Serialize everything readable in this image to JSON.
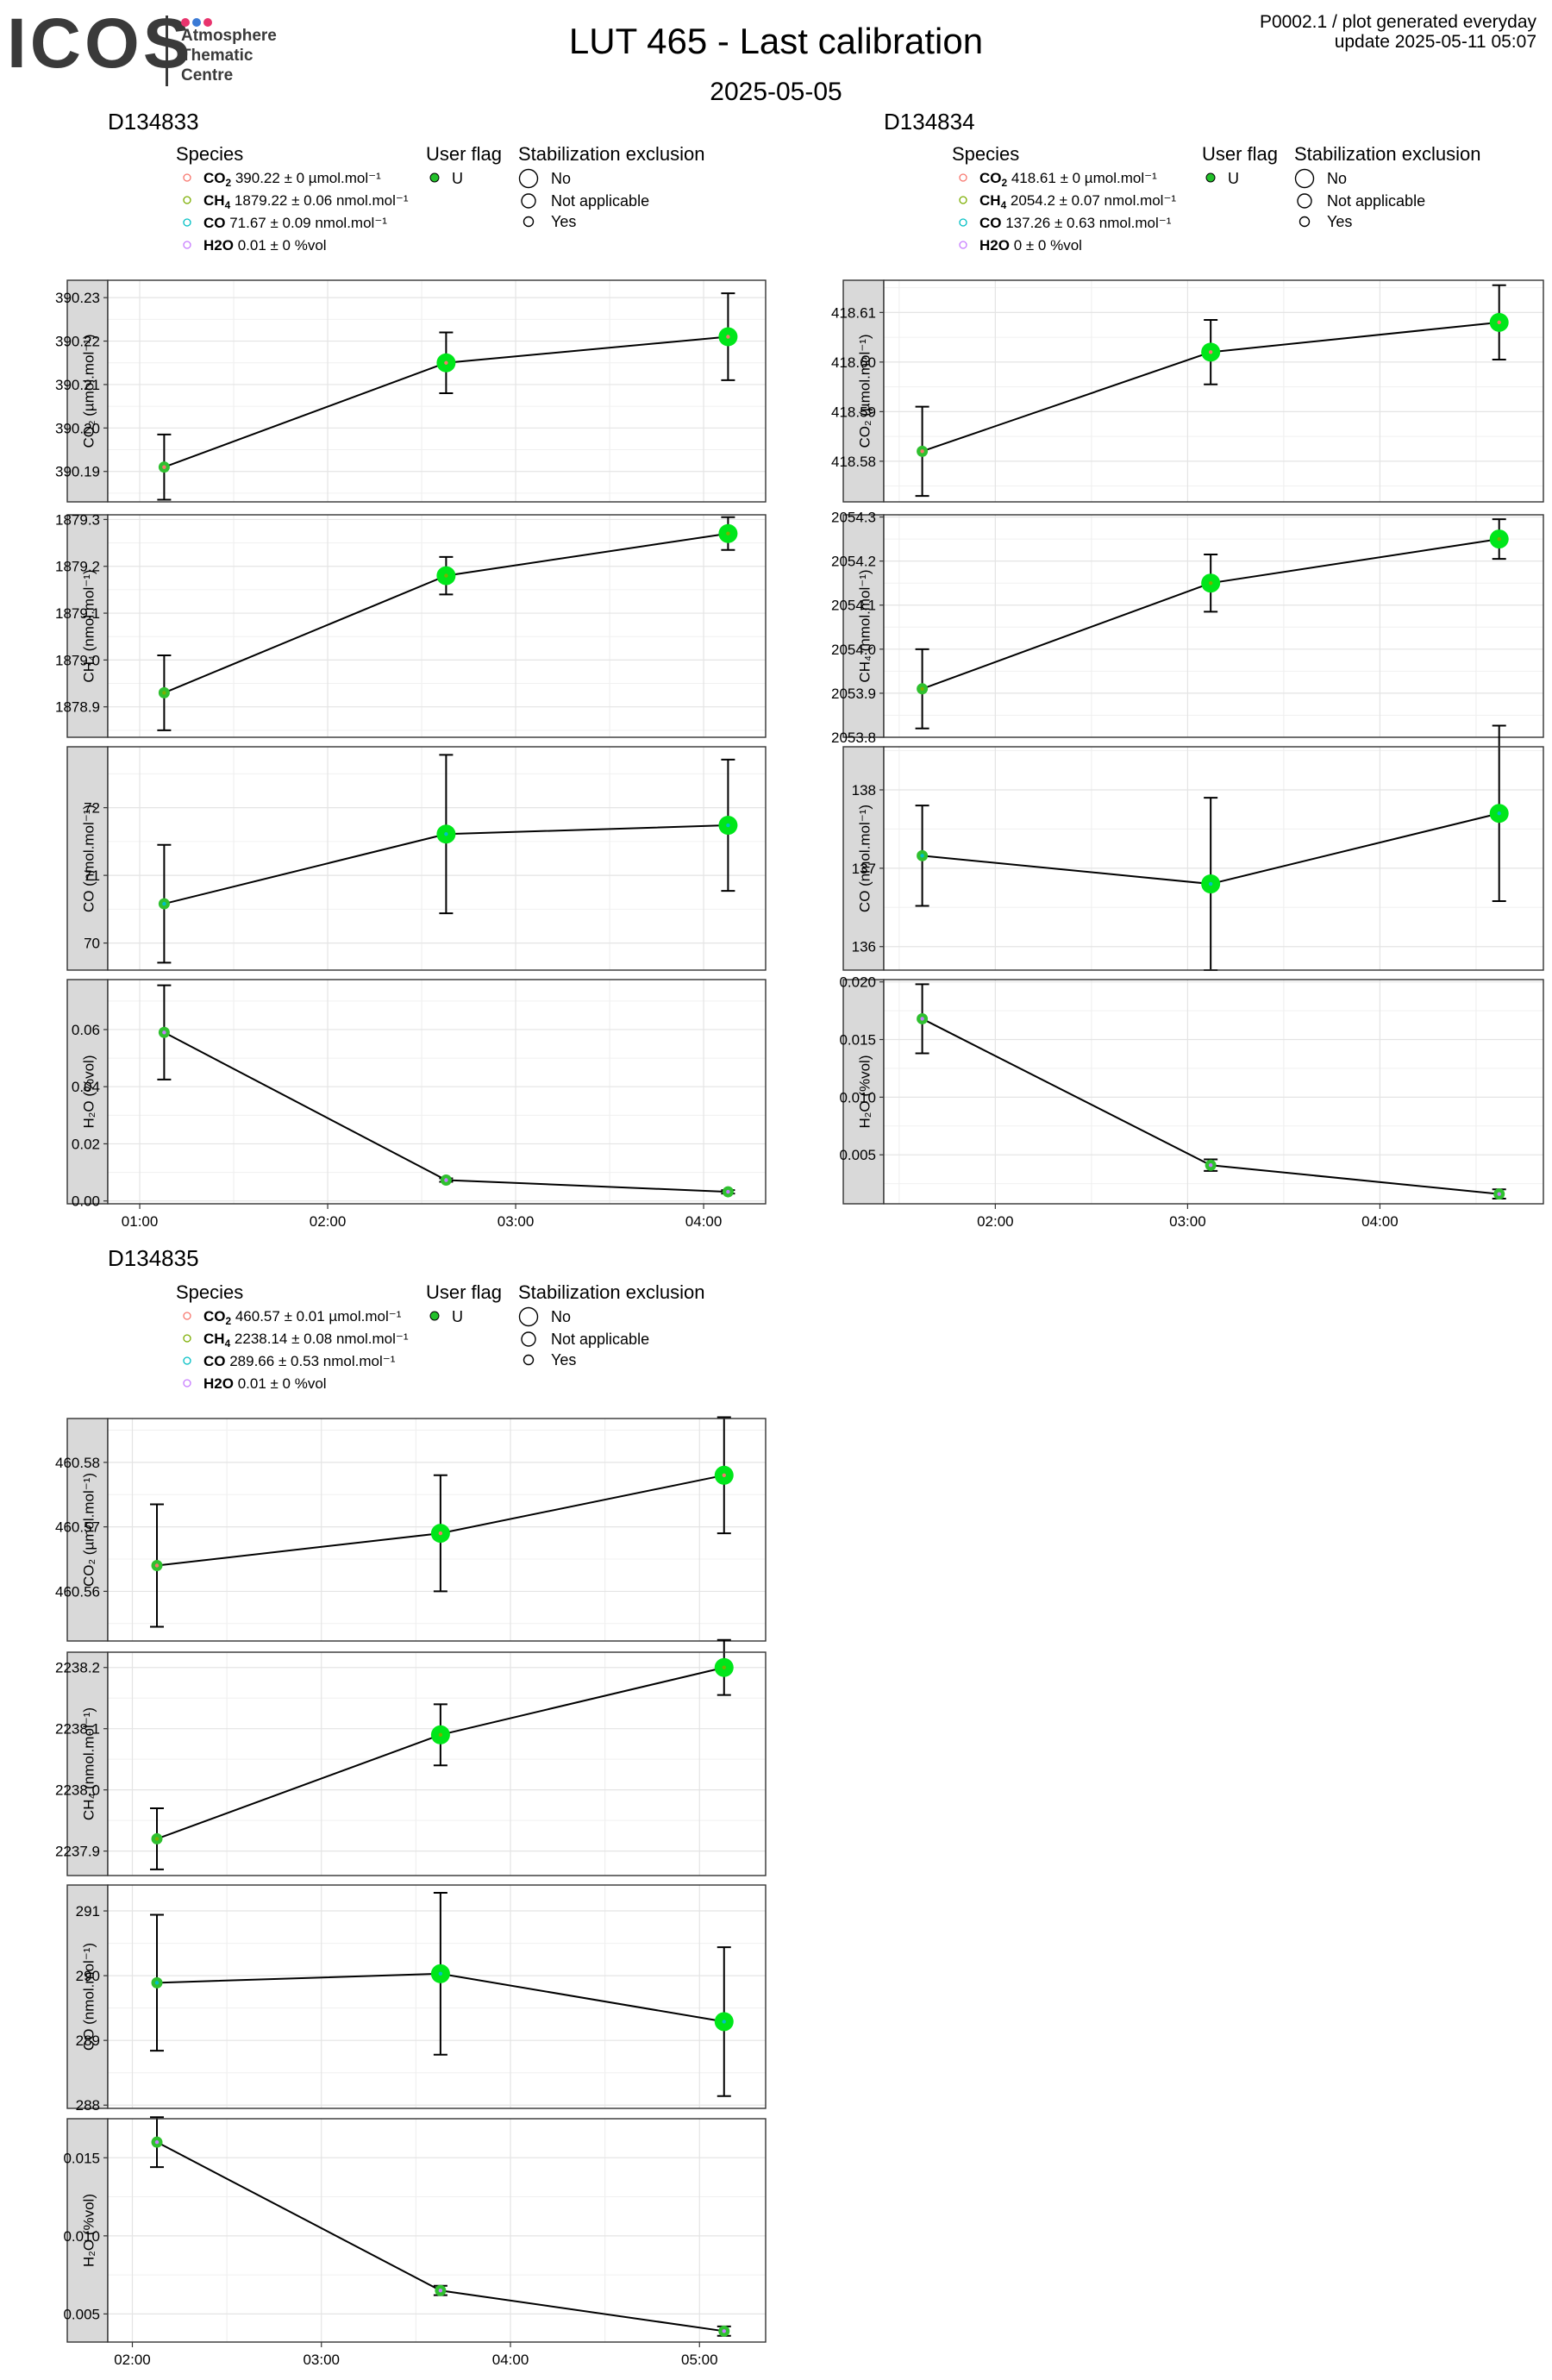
{
  "logo": {
    "wordmark": "ICOS",
    "line1": "Atmosphere",
    "line2": "Thematic",
    "line3": "Centre",
    "dot_colors": [
      "#e8336d",
      "#3b7bd6",
      "#e8336d"
    ],
    "text_color": "#3a3a3a"
  },
  "header": {
    "title": "LUT 465 - Last calibration",
    "date": "2025-05-05",
    "product": "P0002.1 / plot generated everyday",
    "update": "update  2025-05-11 05:07"
  },
  "legend_titles": {
    "species": "Species",
    "user_flag": "User flag",
    "stabilization": "Stabilization exclusion"
  },
  "legend_labels": {
    "user_flag_value": "U",
    "stab_no": "No",
    "stab_na": "Not applicable",
    "stab_yes": "Yes"
  },
  "species_colors": {
    "CO2": "#f8766d",
    "CH4": "#7cae00",
    "CO": "#00bfc4",
    "H2O": "#c77cff"
  },
  "marker_color": "#00e61a",
  "chart_data": [
    {
      "type": "scatter",
      "instrument": "D134833",
      "xlabel": "",
      "x_ticks": [
        "01:00",
        "02:00",
        "03:00",
        "04:00"
      ],
      "xlim": [
        0.83,
        4.33
      ],
      "x_tick_values": [
        1,
        2,
        3,
        4
      ],
      "species": [
        {
          "label": "CO2",
          "summary": "390.22 ± 0 µmol.mol⁻¹"
        },
        {
          "label": "CH4",
          "summary": "1879.22 ± 0.06 nmol.mol⁻¹"
        },
        {
          "label": "CO",
          "summary": "71.67 ± 0.09 nmol.mol⁻¹"
        },
        {
          "label": "H2O",
          "summary": "0.01 ± 0 %vol"
        }
      ],
      "panels": [
        {
          "species": "CO2",
          "ylabel": "CO₂ (µmol.mol⁻¹)",
          "ylim": [
            390.183,
            390.234
          ],
          "y_ticks": [
            "390.19",
            "390.20",
            "390.21",
            "390.22",
            "390.23"
          ],
          "y_tick_values": [
            390.19,
            390.2,
            390.21,
            390.22,
            390.23
          ],
          "points": [
            {
              "x": 1.13,
              "y": 390.191,
              "err": 0.0075,
              "size": "small"
            },
            {
              "x": 2.63,
              "y": 390.215,
              "err": 0.007,
              "size": "large"
            },
            {
              "x": 4.13,
              "y": 390.221,
              "err": 0.01,
              "size": "large"
            }
          ]
        },
        {
          "species": "CH4",
          "ylabel": "CH₄ (nmol.mol⁻¹)",
          "ylim": [
            1878.835,
            1879.31
          ],
          "y_ticks": [
            "1878.9",
            "1879.0",
            "1879.1",
            "1879.2",
            "1879.3"
          ],
          "y_tick_values": [
            1878.9,
            1879.0,
            1879.1,
            1879.2,
            1879.3
          ],
          "points": [
            {
              "x": 1.13,
              "y": 1878.93,
              "err": 0.08,
              "size": "small"
            },
            {
              "x": 2.63,
              "y": 1879.18,
              "err": 0.04,
              "size": "large"
            },
            {
              "x": 4.13,
              "y": 1879.27,
              "err": 0.035,
              "size": "large"
            }
          ]
        },
        {
          "species": "CO",
          "ylabel": "CO (nmol.mol⁻¹)",
          "ylim": [
            69.6,
            72.9
          ],
          "y_ticks": [
            "70",
            "71",
            "72"
          ],
          "y_tick_values": [
            70,
            71,
            72
          ],
          "points": [
            {
              "x": 1.13,
              "y": 70.58,
              "err": 0.87,
              "size": "small"
            },
            {
              "x": 2.63,
              "y": 71.61,
              "err": 1.17,
              "size": "large"
            },
            {
              "x": 4.13,
              "y": 71.74,
              "err": 0.97,
              "size": "large"
            }
          ]
        },
        {
          "species": "H2O",
          "ylabel": "H₂O (%vol)",
          "ylim": [
            -0.001,
            0.0775
          ],
          "y_ticks": [
            "0.00",
            "0.02",
            "0.04",
            "0.06"
          ],
          "y_tick_values": [
            0,
            0.02,
            0.04,
            0.06
          ],
          "points": [
            {
              "x": 1.13,
              "y": 0.059,
              "err": 0.0165,
              "size": "small"
            },
            {
              "x": 2.63,
              "y": 0.0073,
              "err": 0.0006,
              "size": "small"
            },
            {
              "x": 4.13,
              "y": 0.0032,
              "err": 0.0006,
              "size": "small"
            }
          ]
        }
      ]
    },
    {
      "type": "scatter",
      "instrument": "D134834",
      "xlabel": "",
      "x_ticks": [
        "02:00",
        "03:00",
        "04:00"
      ],
      "xlim": [
        1.42,
        4.85
      ],
      "x_tick_values": [
        2,
        3,
        4
      ],
      "species": [
        {
          "label": "CO2",
          "summary": "418.61 ± 0 µmol.mol⁻¹"
        },
        {
          "label": "CH4",
          "summary": "2054.2 ± 0.07 nmol.mol⁻¹"
        },
        {
          "label": "CO",
          "summary": "137.26 ± 0.63 nmol.mol⁻¹"
        },
        {
          "label": "H2O",
          "summary": "0 ± 0 %vol"
        }
      ],
      "panels": [
        {
          "species": "CO2",
          "ylabel": "CO₂ (µmol.mol⁻¹)",
          "ylim": [
            418.5718,
            418.6165
          ],
          "y_ticks": [
            "418.58",
            "418.59",
            "418.60",
            "418.61"
          ],
          "y_tick_values": [
            418.58,
            418.59,
            418.6,
            418.61
          ],
          "points": [
            {
              "x": 1.62,
              "y": 418.582,
              "err": 0.009,
              "size": "small"
            },
            {
              "x": 3.12,
              "y": 418.602,
              "err": 0.0065,
              "size": "large"
            },
            {
              "x": 4.62,
              "y": 418.608,
              "err": 0.0075,
              "size": "large"
            }
          ]
        },
        {
          "species": "CH4",
          "ylabel": "CH₄ (nmol.mol⁻¹)",
          "ylim": [
            2053.8,
            2054.305
          ],
          "y_ticks": [
            "2053.8",
            "2053.9",
            "2054.0",
            "2054.1",
            "2054.2",
            "2054.3"
          ],
          "y_tick_values": [
            2053.8,
            2053.9,
            2054.0,
            2054.1,
            2054.2,
            2054.3
          ],
          "points": [
            {
              "x": 1.62,
              "y": 2053.91,
              "err": 0.09,
              "size": "small"
            },
            {
              "x": 3.12,
              "y": 2054.15,
              "err": 0.065,
              "size": "large"
            },
            {
              "x": 4.62,
              "y": 2054.25,
              "err": 0.045,
              "size": "large"
            }
          ]
        },
        {
          "species": "CO",
          "ylabel": "CO (nmol.mol⁻¹)",
          "ylim": [
            135.7,
            138.55
          ],
          "y_ticks": [
            "136",
            "137",
            "138"
          ],
          "y_tick_values": [
            136,
            137,
            138
          ],
          "points": [
            {
              "x": 1.62,
              "y": 137.16,
              "err": 0.64,
              "size": "small"
            },
            {
              "x": 3.12,
              "y": 136.8,
              "err": 1.1,
              "size": "large"
            },
            {
              "x": 4.62,
              "y": 137.7,
              "err": 1.12,
              "size": "large"
            }
          ]
        },
        {
          "species": "H2O",
          "ylabel": "H₂O (%vol)",
          "ylim": [
            0.00075,
            0.0202
          ],
          "y_ticks": [
            "0.005",
            "0.010",
            "0.015",
            "0.020"
          ],
          "y_tick_values": [
            0.005,
            0.01,
            0.015,
            0.02
          ],
          "points": [
            {
              "x": 1.62,
              "y": 0.0168,
              "err": 0.003,
              "size": "small"
            },
            {
              "x": 3.12,
              "y": 0.0041,
              "err": 0.0005,
              "size": "small"
            },
            {
              "x": 4.62,
              "y": 0.0016,
              "err": 0.0004,
              "size": "small"
            }
          ]
        }
      ]
    },
    {
      "type": "scatter",
      "instrument": "D134835",
      "xlabel": "",
      "x_ticks": [
        "02:00",
        "03:00",
        "04:00",
        "05:00"
      ],
      "xlim": [
        1.87,
        5.35
      ],
      "x_tick_values": [
        2,
        3,
        4,
        5
      ],
      "species": [
        {
          "label": "CO2",
          "summary": "460.57 ± 0.01 µmol.mol⁻¹"
        },
        {
          "label": "CH4",
          "summary": "2238.14 ± 0.08 nmol.mol⁻¹"
        },
        {
          "label": "CO",
          "summary": "289.66 ± 0.53 nmol.mol⁻¹"
        },
        {
          "label": "H2O",
          "summary": "0.01 ± 0 %vol"
        }
      ],
      "panels": [
        {
          "species": "CO2",
          "ylabel": "CO₂ (µmol.mol⁻¹)",
          "ylim": [
            460.5523,
            460.5868
          ],
          "y_ticks": [
            "460.56",
            "460.57",
            "460.58"
          ],
          "y_tick_values": [
            460.56,
            460.57,
            460.58
          ],
          "points": [
            {
              "x": 2.13,
              "y": 460.564,
              "err": 0.0095,
              "size": "small"
            },
            {
              "x": 3.63,
              "y": 460.569,
              "err": 0.009,
              "size": "large"
            },
            {
              "x": 5.13,
              "y": 460.578,
              "err": 0.009,
              "size": "large"
            }
          ]
        },
        {
          "species": "CH4",
          "ylabel": "CH₄ (nmol.mol⁻¹)",
          "ylim": [
            2237.86,
            2238.225
          ],
          "y_ticks": [
            "2237.9",
            "2238.0",
            "2238.1",
            "2238.2"
          ],
          "y_tick_values": [
            2237.9,
            2238.0,
            2238.1,
            2238.2
          ],
          "points": [
            {
              "x": 2.13,
              "y": 2237.92,
              "err": 0.05,
              "size": "small"
            },
            {
              "x": 3.63,
              "y": 2238.09,
              "err": 0.05,
              "size": "large"
            },
            {
              "x": 5.13,
              "y": 2238.2,
              "err": 0.045,
              "size": "large"
            }
          ]
        },
        {
          "species": "CO",
          "ylabel": "CO (nmol.mol⁻¹)",
          "ylim": [
            287.95,
            291.4
          ],
          "y_ticks": [
            "288",
            "289",
            "290",
            "291"
          ],
          "y_tick_values": [
            288,
            289,
            290,
            291
          ],
          "points": [
            {
              "x": 2.13,
              "y": 289.89,
              "err": 1.05,
              "size": "small"
            },
            {
              "x": 3.63,
              "y": 290.03,
              "err": 1.25,
              "size": "large"
            },
            {
              "x": 5.13,
              "y": 289.29,
              "err": 1.15,
              "size": "large"
            }
          ]
        },
        {
          "species": "H2O",
          "ylabel": "H₂O (%vol)",
          "ylim": [
            0.0032,
            0.0175
          ],
          "y_ticks": [
            "0.005",
            "0.010",
            "0.015"
          ],
          "y_tick_values": [
            0.005,
            0.01,
            0.015
          ],
          "points": [
            {
              "x": 2.13,
              "y": 0.016,
              "err": 0.0016,
              "size": "small"
            },
            {
              "x": 3.63,
              "y": 0.0065,
              "err": 0.0003,
              "size": "small"
            },
            {
              "x": 5.13,
              "y": 0.0039,
              "err": 0.0003,
              "size": "small"
            }
          ]
        }
      ]
    }
  ]
}
